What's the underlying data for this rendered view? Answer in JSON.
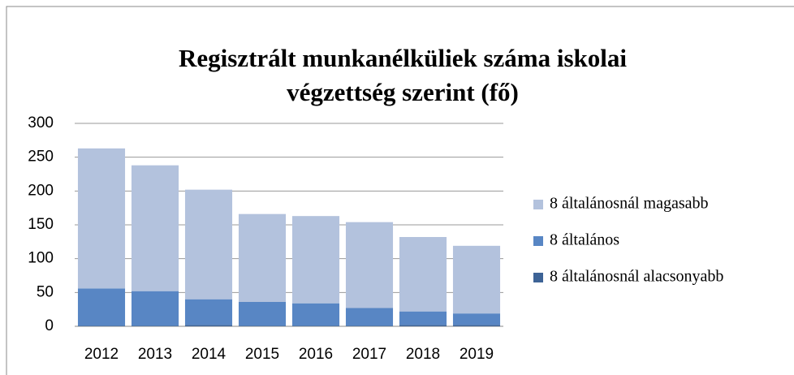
{
  "chart_data": {
    "type": "stacked_bar",
    "title": [
      "Regisztrált munkanélküliek száma iskolai",
      "végzettség szerint (fő)"
    ],
    "categories": [
      "2012",
      "2013",
      "2014",
      "2015",
      "2016",
      "2017",
      "2018",
      "2019"
    ],
    "series": [
      {
        "name": "8 általánosnál alacsonyabb",
        "color": "#3d6396",
        "values": [
          1,
          1,
          2,
          1,
          1,
          1,
          2,
          2
        ]
      },
      {
        "name": "8 általános",
        "color": "#5886c4",
        "values": [
          55,
          51,
          38,
          35,
          33,
          26,
          20,
          17
        ]
      },
      {
        "name": "8 általánosnál magasabb",
        "color": "#b3c2dd",
        "values": [
          207,
          186,
          162,
          130,
          129,
          127,
          110,
          100
        ]
      }
    ],
    "ylim": [
      0,
      300
    ],
    "yticks": [
      0,
      50,
      100,
      150,
      200,
      250,
      300
    ],
    "grid": true
  }
}
